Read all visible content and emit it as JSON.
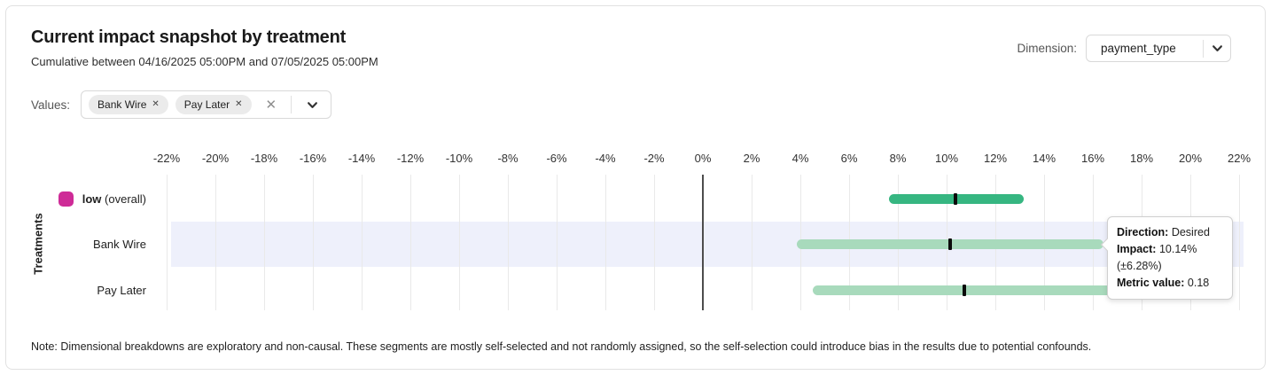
{
  "header": {
    "title": "Current impact snapshot by treatment",
    "subtitle": "Cumulative between 04/16/2025 05:00PM and 07/05/2025 05:00PM"
  },
  "dimension": {
    "label": "Dimension:",
    "value": "payment_type"
  },
  "values_filter": {
    "label": "Values:",
    "chips": [
      "Bank Wire",
      "Pay Later"
    ],
    "remove_icon": "✕",
    "clear_icon": "✕"
  },
  "chart_data": {
    "type": "bar",
    "subtype": "horizontal-interval",
    "title": "Current impact snapshot by treatment",
    "xlabel": "",
    "ylabel": "Treatments",
    "xlim": [
      -22,
      22
    ],
    "x_tick_step_pct": 2,
    "x_tick_labels": [
      "-22%",
      "-20%",
      "-18%",
      "-16%",
      "-14%",
      "-12%",
      "-10%",
      "-8%",
      "-6%",
      "-4%",
      "-2%",
      "0%",
      "2%",
      "4%",
      "6%",
      "8%",
      "10%",
      "12%",
      "14%",
      "16%",
      "18%",
      "20%",
      "22%"
    ],
    "grid": true,
    "highlight_band_color": "#eef0fb",
    "zero_line_color": "#4d4d4d",
    "impact_tick_color": "#0b0b0b",
    "rows": [
      {
        "label": "low",
        "label_note": "(overall)",
        "legend_color": "#ce2b97",
        "bar_color": "#36b681",
        "impact_pct": 10.36,
        "ci_low_pct": 7.64,
        "ci_high_pct": 13.16,
        "highlighted": false
      },
      {
        "label": "Bank Wire",
        "label_note": "",
        "legend_color": "",
        "bar_color": "#a8dabc",
        "impact_pct": 10.14,
        "ci_low_pct": 3.86,
        "ci_high_pct": 16.42,
        "highlighted": true
      },
      {
        "label": "Pay Later",
        "label_note": "",
        "legend_color": "",
        "bar_color": "#a8dabc",
        "impact_pct": 10.73,
        "ci_low_pct": 4.51,
        "ci_high_pct": 16.95,
        "highlighted": false
      }
    ]
  },
  "tooltip": {
    "lines": [
      {
        "label": "Direction:",
        "value": "Desired"
      },
      {
        "label": "Impact:",
        "value": "10.14% (±6.28%)"
      },
      {
        "label": "Metric value:",
        "value": "0.18"
      }
    ]
  },
  "note": "Note: Dimensional breakdowns are exploratory and non-causal. These segments are mostly self-selected and not randomly assigned, so the self-selection could introduce bias in the results due to potential confounds."
}
